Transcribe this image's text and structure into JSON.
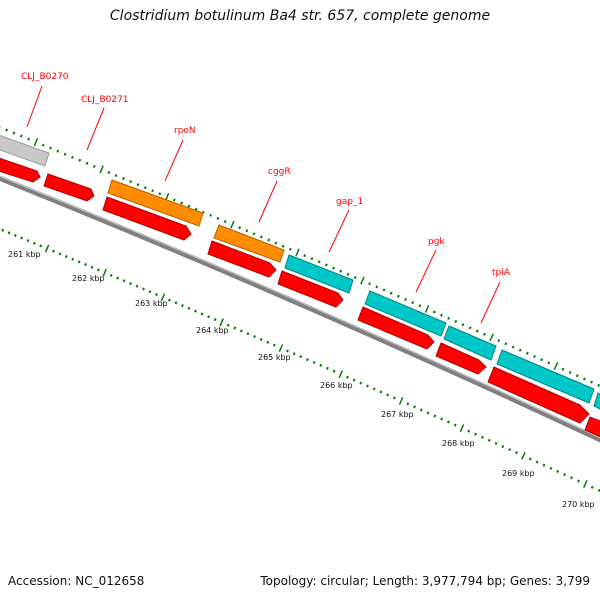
{
  "title": "Clostridium botulinum Ba4 str. 657, complete genome",
  "footer": {
    "accession": "Accession: NC_012658",
    "summary": "Topology: circular; Length: 3,977,794 bp; Genes: 3,799"
  },
  "colors": {
    "background": "#ffffff",
    "backbone": "#808080",
    "cds": "#ff0000",
    "orange": "#ff8c00",
    "cyan": "#00c8c8",
    "grey": "#c8c8c8",
    "tick": "#008000",
    "label": "#ff0000"
  },
  "scale_labels": [
    "261 kbp",
    "262 kbp",
    "263 kbp",
    "264 kbp",
    "265 kbp",
    "266 kbp",
    "267 kbp",
    "268 kbp",
    "269 kbp",
    "270 kbp"
  ],
  "gene_labels": [
    "CLJ_B0270",
    "CLJ_B0271",
    "rpoN",
    "cggR",
    "gap_1",
    "pgk",
    "tpiA"
  ]
}
